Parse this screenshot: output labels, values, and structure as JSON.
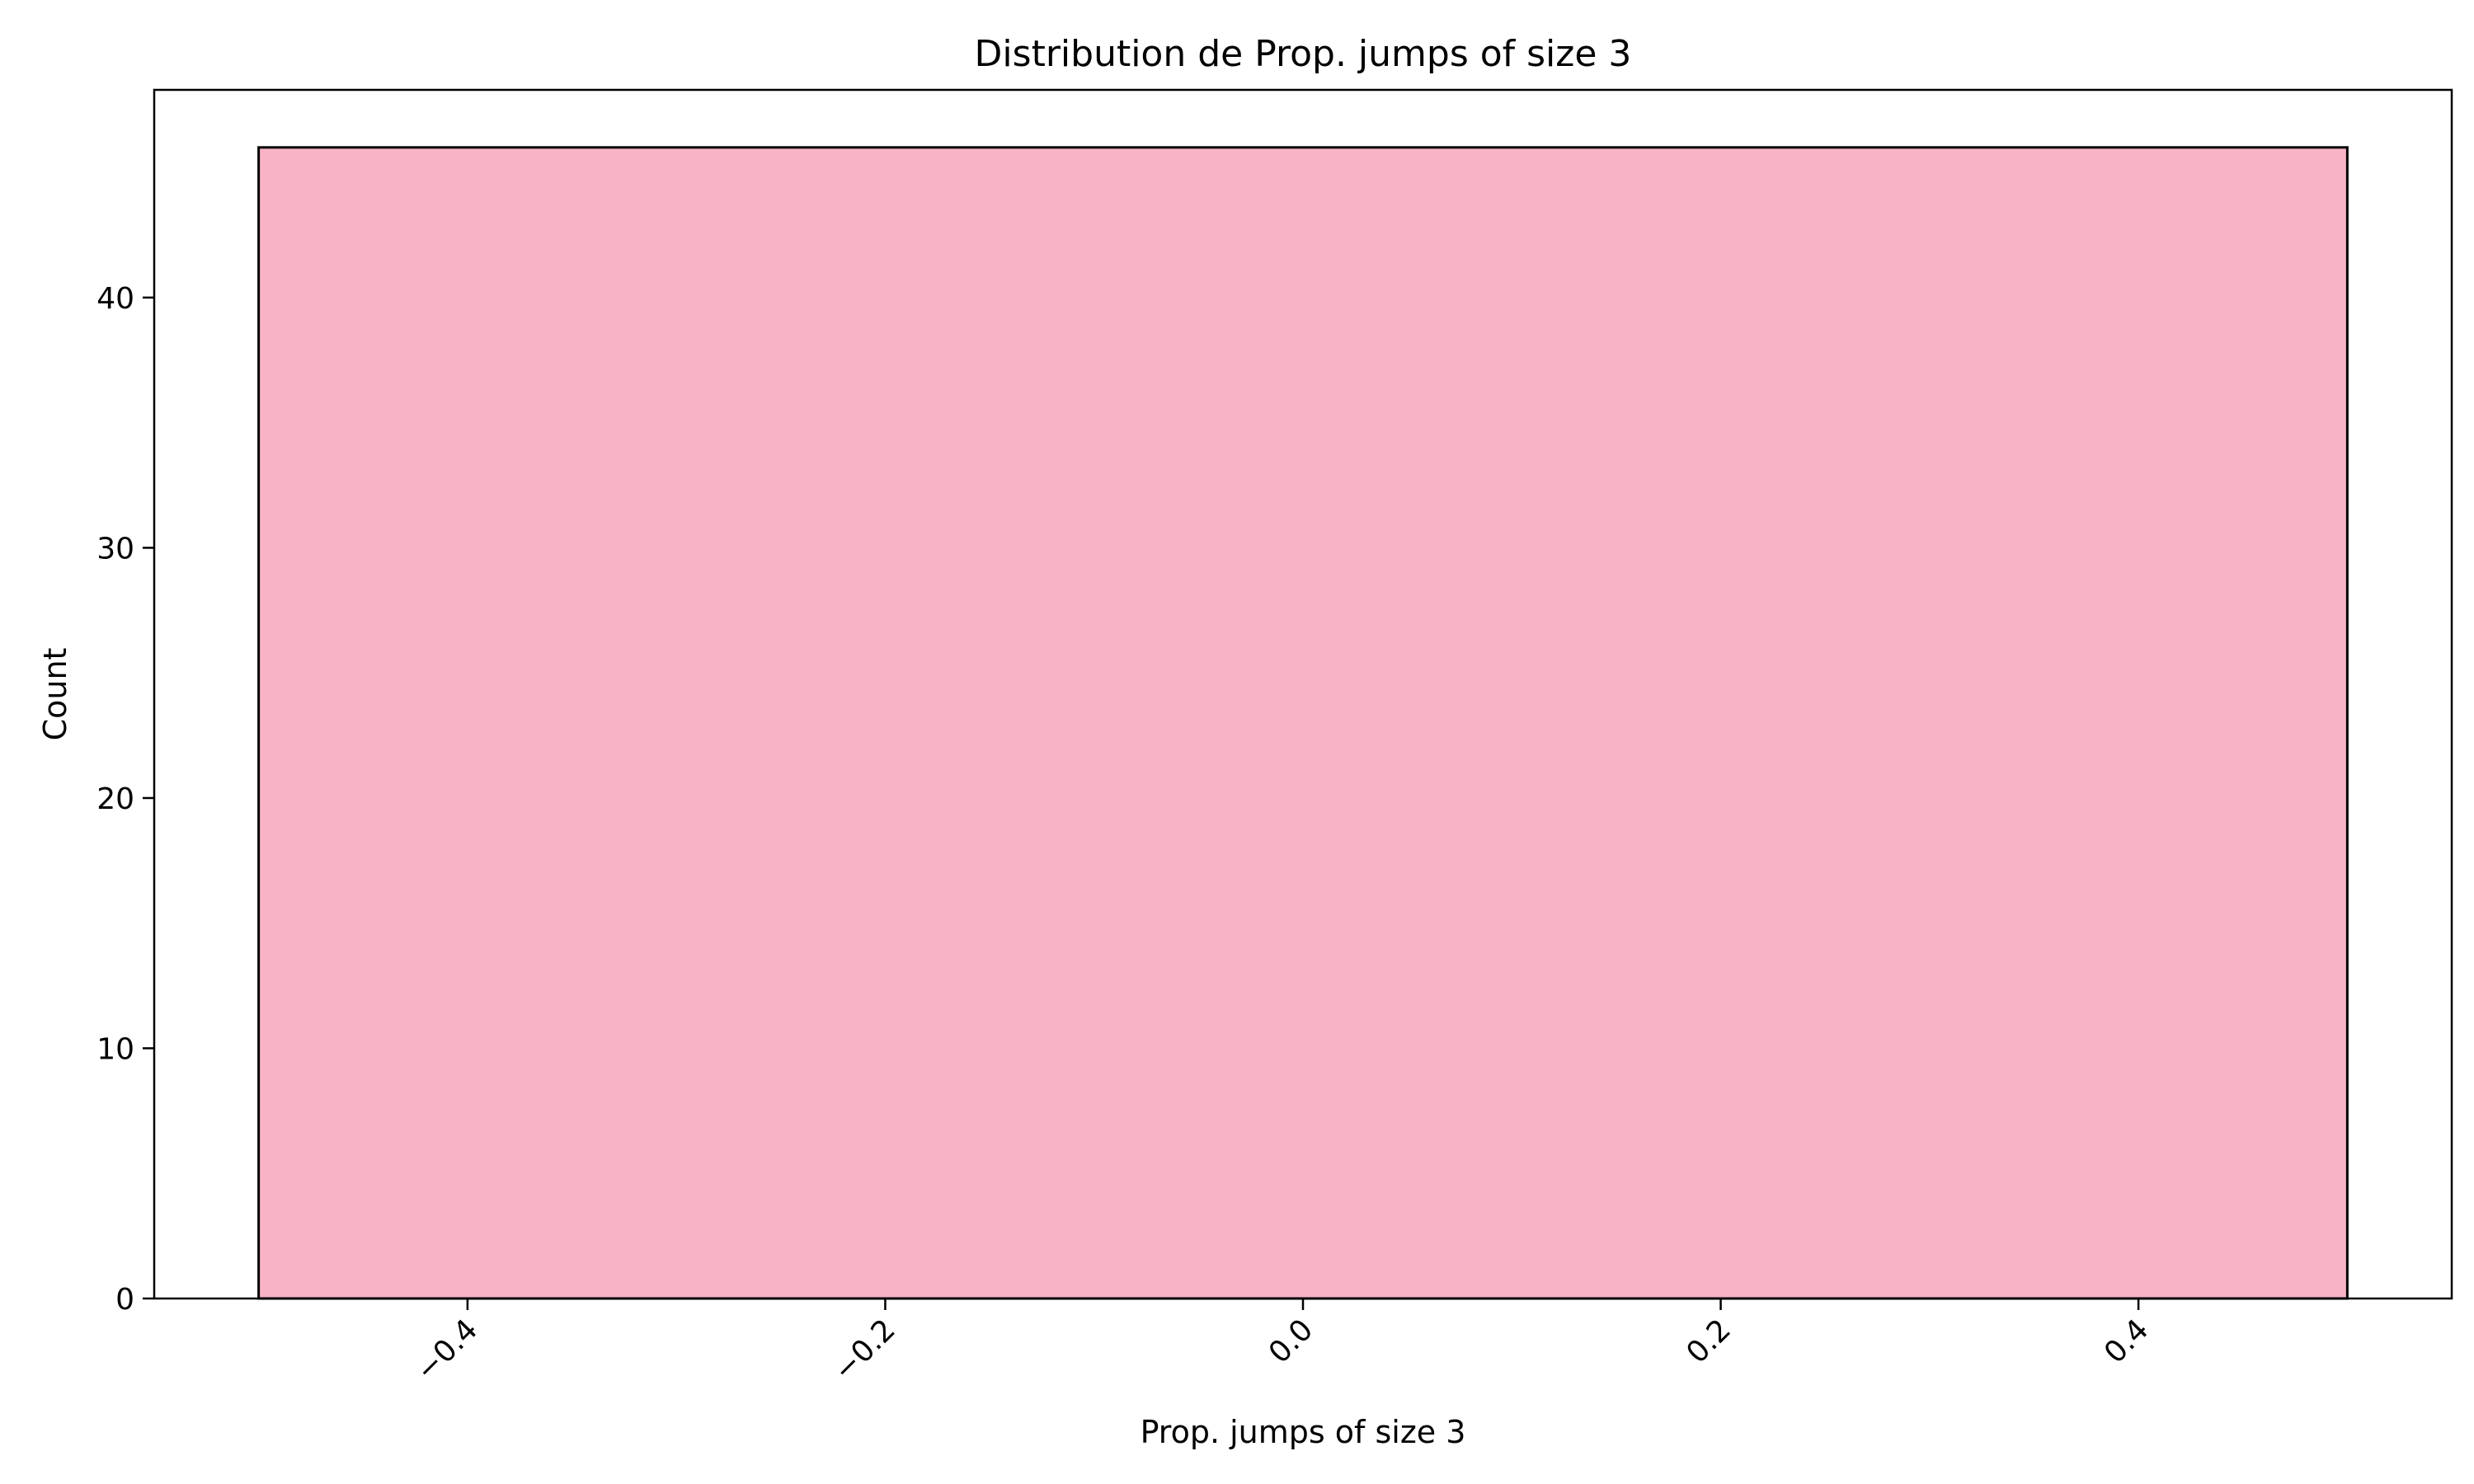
{
  "chart_data": {
    "type": "bar",
    "title": "Distribution de Prop. jumps of size 3",
    "xlabel": "Prop. jumps of size 3",
    "ylabel": "Count",
    "bins": [
      {
        "start": -0.5,
        "end": 0.5,
        "count": 46
      }
    ],
    "xlim": [
      -0.55,
      0.55
    ],
    "ylim": [
      0,
      48.3
    ],
    "xticks": [
      -0.4,
      -0.2,
      0.0,
      0.2,
      0.4
    ],
    "xtick_labels": [
      "−0.4",
      "−0.2",
      "0.0",
      "0.2",
      "0.4"
    ],
    "yticks": [
      0,
      10,
      20,
      30,
      40
    ],
    "ytick_labels": [
      "0",
      "10",
      "20",
      "30",
      "40"
    ],
    "bar_color": "#f8b4c4",
    "edge_color": "#000000",
    "grid": false,
    "legend": "none"
  }
}
